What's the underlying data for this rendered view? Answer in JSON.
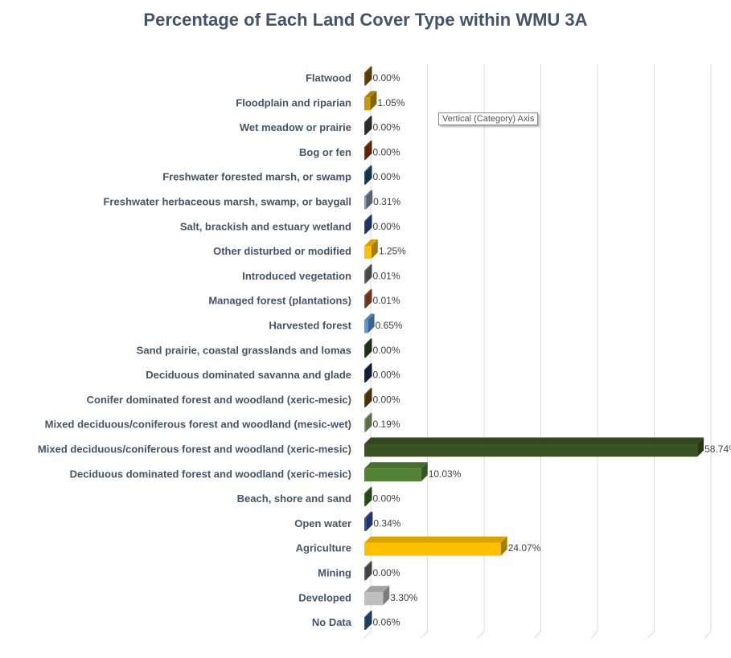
{
  "chart_data": {
    "type": "bar",
    "orientation": "horizontal",
    "style": "3d",
    "title": "Percentage of Each Land Cover Type within WMU 3A",
    "xlim": [
      0,
      60
    ],
    "grid": true,
    "categories": [
      "Flatwood",
      "Floodplain and riparian",
      "Wet meadow or prairie",
      "Bog or fen",
      "Freshwater forested  marsh, or swamp",
      "Freshwater herbaceous marsh, swamp, or baygall",
      "Salt, brackish and estuary wetland",
      "Other disturbed or modified",
      "Introduced vegetation",
      "Managed forest (plantations)",
      "Harvested forest",
      "Sand prairie, coastal grasslands and lomas",
      "Deciduous dominated savanna and glade",
      "Conifer dominated forest and woodland (xeric-mesic)",
      "Mixed deciduous/coniferous forest and woodland (mesic-wet)",
      "Mixed deciduous/coniferous forest and woodland  (xeric-mesic)",
      "Deciduous dominated forest and woodland (xeric-mesic)",
      "Beach, shore and sand",
      "Open water",
      "Agriculture",
      "Mining",
      "Developed",
      "No Data"
    ],
    "values": [
      0.0,
      1.05,
      0.0,
      0.0,
      0.0,
      0.31,
      0.0,
      1.25,
      0.01,
      0.01,
      0.65,
      0.0,
      0.0,
      0.0,
      0.19,
      58.74,
      10.03,
      0.0,
      0.34,
      24.07,
      0.0,
      3.3,
      0.06
    ],
    "data_labels": [
      "0.00%",
      "1.05%",
      "0.00%",
      "0.00%",
      "0.00%",
      "0.31%",
      "0.00%",
      "1.25%",
      "0.01%",
      "0.01%",
      "0.65%",
      "0.00%",
      "0.00%",
      "0.00%",
      "0.19%",
      "58.74%",
      "10.03%",
      "0.00%",
      "0.34%",
      "24.07%",
      "0.00%",
      "3.30%",
      "0.06%"
    ],
    "colors": [
      "#7f6000",
      "#c99a06",
      "#404040",
      "#8b3a0e",
      "#1f4e79",
      "#8497b0",
      "#2f4f8f",
      "#ffc000",
      "#707070",
      "#a0522d",
      "#5b9bd5",
      "#2e4a1e",
      "#1f2d55",
      "#6b4a10",
      "#8aa870",
      "#3b5323",
      "#548235",
      "#3e6b1e",
      "#2f5597",
      "#ffc000",
      "#666666",
      "#bfbfbf",
      "#2e5f8f"
    ]
  },
  "tooltip": "Vertical (Category) Axis"
}
